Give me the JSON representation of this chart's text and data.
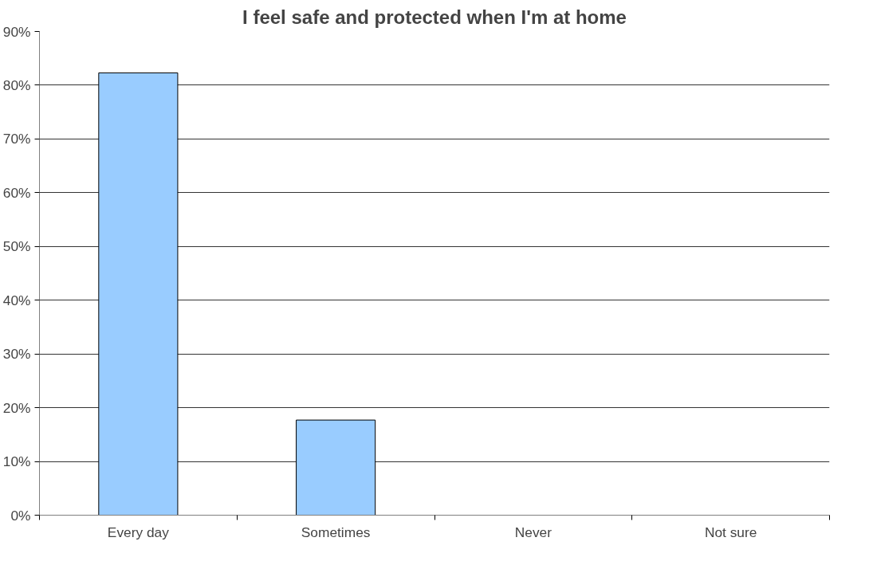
{
  "chart_data": {
    "type": "bar",
    "title": "I feel safe and protected when I'm at home",
    "categories": [
      "Every day",
      "Sometimes",
      "Never",
      "Not sure"
    ],
    "values": [
      82.3,
      17.7,
      0,
      0
    ],
    "color": "#99ccff",
    "ylim": [
      0,
      90
    ],
    "yticks": [
      {
        "value": 0,
        "label": "0%"
      },
      {
        "value": 10,
        "label": "10%"
      },
      {
        "value": 20,
        "label": "20%"
      },
      {
        "value": 30,
        "label": "30%"
      },
      {
        "value": 40,
        "label": "40%"
      },
      {
        "value": 50,
        "label": "50%"
      },
      {
        "value": 60,
        "label": "60%"
      },
      {
        "value": 70,
        "label": "70%"
      },
      {
        "value": 80,
        "label": "80%"
      },
      {
        "value": 90,
        "label": "90%"
      }
    ],
    "grid": "y"
  }
}
